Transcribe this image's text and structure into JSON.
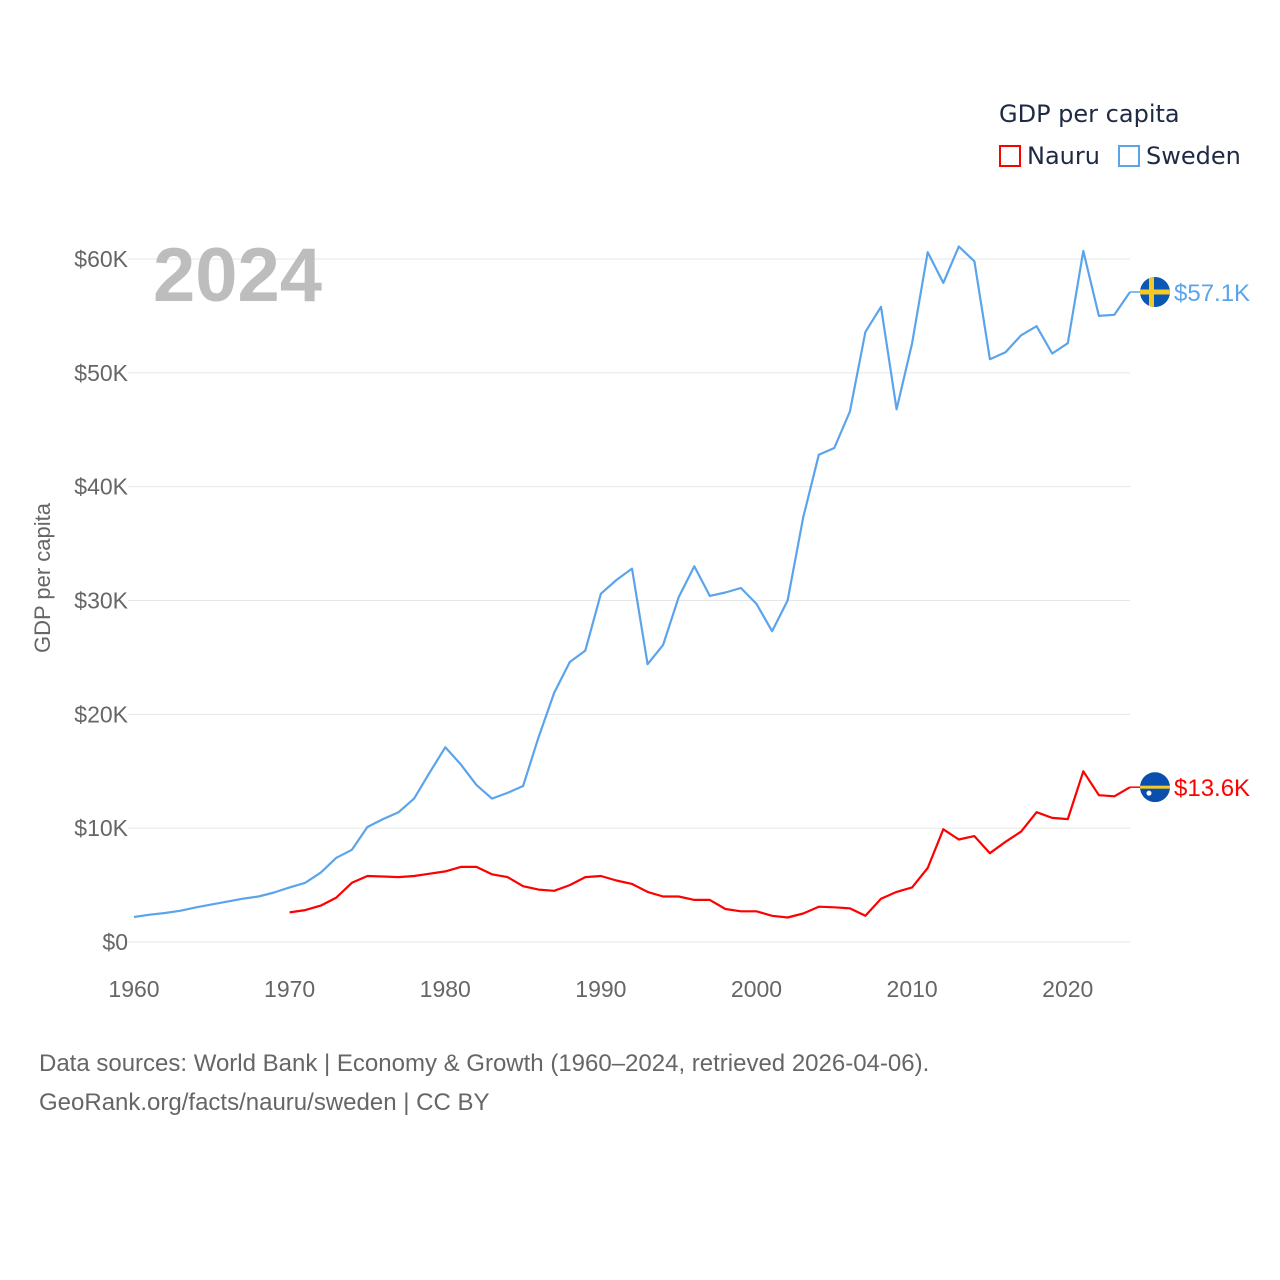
{
  "chart_data": {
    "type": "line",
    "title": "GDP per capita",
    "ylabel": "GDP per capita",
    "xlabel": "",
    "current_year_label": "2024",
    "xlim": [
      1960,
      2024
    ],
    "ylim": [
      0,
      60000
    ],
    "x_ticks": [
      1960,
      1970,
      1980,
      1990,
      2000,
      2010,
      2020
    ],
    "x_tick_labels": [
      "1960",
      "1970",
      "1980",
      "1990",
      "2000",
      "2010",
      "2020"
    ],
    "y_ticks": [
      0,
      10000,
      20000,
      30000,
      40000,
      50000,
      60000
    ],
    "y_tick_labels": [
      "$0",
      "$10K",
      "$20K",
      "$30K",
      "$40K",
      "$50K",
      "$60K"
    ],
    "grid": true,
    "legend_placement": "top-right",
    "series": [
      {
        "name": "Nauru",
        "color": "#ff0000",
        "end_label": "$13.6K",
        "flag": "nauru-flag",
        "start_year": 1970,
        "values": [
          2600,
          2800,
          3200,
          3900,
          5200,
          5800,
          5750,
          5700,
          5800,
          6000,
          6200,
          6600,
          6600,
          5950,
          5700,
          4900,
          4600,
          4500,
          5000,
          5700,
          5800,
          5400,
          5100,
          4400,
          4000,
          4000,
          3700,
          3700,
          2900,
          2700,
          2700,
          2300,
          2150,
          2500,
          3100,
          3050,
          2950,
          2300,
          3800,
          4400,
          4800,
          6500,
          9900,
          9000,
          9300,
          7800,
          8800,
          9700,
          11400,
          10900,
          10800,
          15000,
          12900,
          12800,
          13600
        ]
      },
      {
        "name": "Sweden",
        "color": "#5ba4ec",
        "end_label": "$57.1K",
        "flag": "sweden-flag",
        "start_year": 1960,
        "values": [
          2200,
          2400,
          2550,
          2750,
          3050,
          3300,
          3550,
          3800,
          4000,
          4350,
          4800,
          5200,
          6100,
          7400,
          8100,
          10100,
          10800,
          11400,
          12600,
          14900,
          17100,
          15600,
          13800,
          12600,
          13100,
          13700,
          18000,
          21900,
          24600,
          25600,
          30600,
          31800,
          32800,
          24400,
          26100,
          30300,
          33000,
          30400,
          30700,
          31100,
          29700,
          27300,
          30000,
          37300,
          42800,
          43400,
          46600,
          53600,
          55800,
          46800,
          52600,
          60600,
          57900,
          61100,
          59800,
          51200,
          51800,
          53300,
          54100,
          51700,
          52600,
          60700,
          55000,
          55100,
          57100
        ]
      }
    ]
  },
  "legend": {
    "title": "GDP per capita",
    "items": [
      "Nauru",
      "Sweden"
    ]
  },
  "footer": {
    "line1": "Data sources: World Bank | Economy & Growth (1960–2024, retrieved 2026-04-06).",
    "line2": "GeoRank.org/facts/nauru/sweden | CC BY"
  }
}
